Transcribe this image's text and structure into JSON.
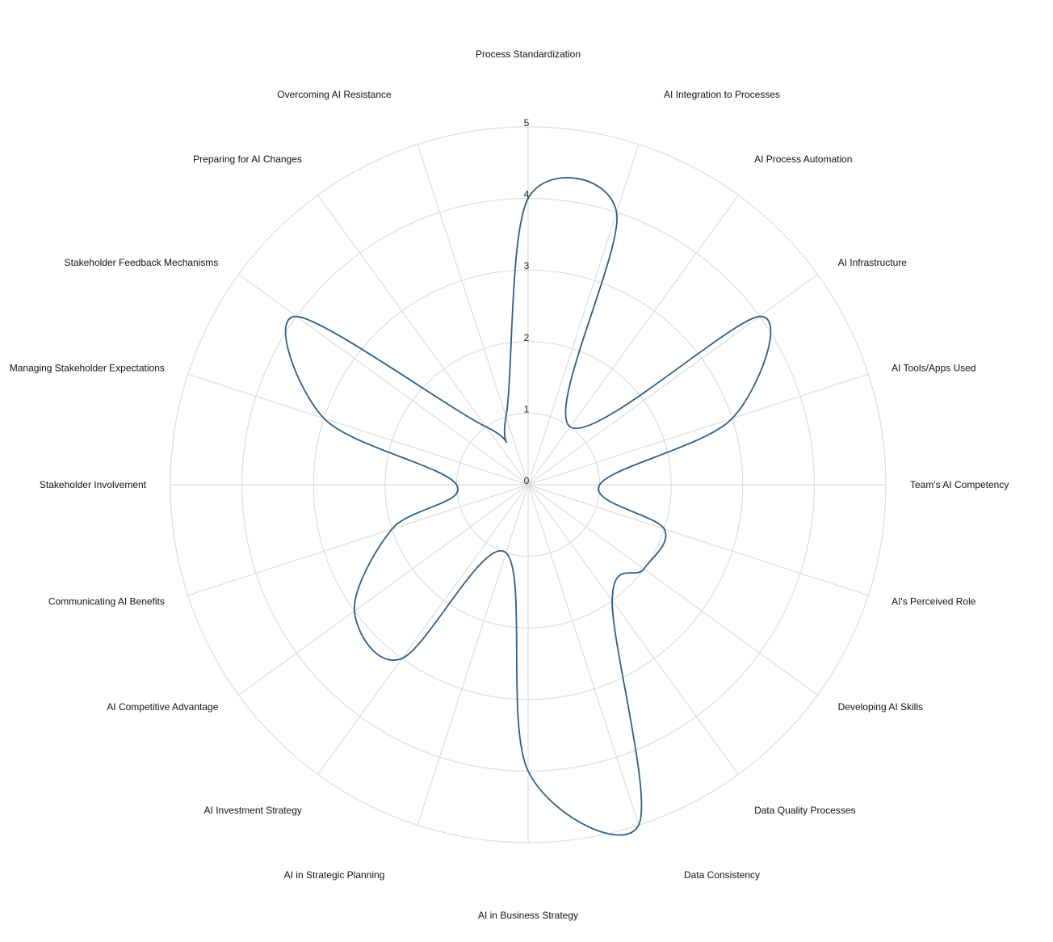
{
  "chart_data": {
    "type": "radar",
    "rmax": 5,
    "ticks": [
      "0",
      "1",
      "2",
      "3",
      "4",
      "5"
    ],
    "tick_values": [
      0,
      1,
      2,
      3,
      4,
      5
    ],
    "grid": true,
    "categories": [
      "Process Standardization",
      "AI Integration to Processes",
      "AI Process Automation",
      "AI Infrastructure",
      "AI Tools/Apps Used",
      "Team's AI Competency",
      "AI's Perceived Role",
      "Developing AI Skills",
      "Data Quality Processes",
      "Data Consistency",
      "AI in Business Strategy",
      "AI in Strategic Planning",
      "AI Investment Strategy",
      "AI Competitive Advantage",
      "Communicating AI Benefits",
      "Stakeholder Involvement",
      "Managing Stakeholder Expectations",
      "Stakeholder Feedback Mechanisms",
      "Preparing for AI Changes",
      "Overcoming AI Resistance"
    ],
    "series": [
      {
        "values": [
          4,
          4,
          1,
          4,
          3,
          1,
          2,
          2,
          2,
          5,
          4,
          1,
          3,
          3,
          2,
          1,
          3,
          4,
          1,
          1
        ],
        "color": "#2f5f83"
      }
    ]
  }
}
